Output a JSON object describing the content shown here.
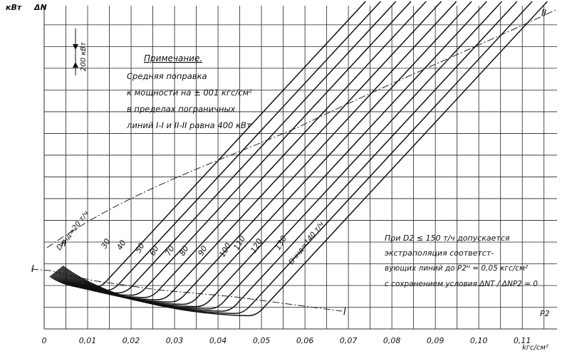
{
  "chart_data": {
    "type": "line",
    "xlabel": "P2",
    "x_unit": "kгс/см²",
    "ylabel": "ΔN",
    "y_unit": "кВт",
    "scale_note": "200 кВт",
    "x_ticks": [
      "0",
      "0,01",
      "0,02",
      "0,03",
      "0,04",
      "0,05",
      "0,06",
      "0,07",
      "0,08",
      "0,09",
      "0,10",
      "0,11"
    ],
    "xlim": [
      0,
      0.118
    ],
    "y_grid_step_kw": 100,
    "note_title": "Примечание.",
    "note_lines": [
      "Средняя поправка",
      "к мощности на ± 001 кгс/см²",
      "в пределах пограничных",
      "линий I-I и II-II равна 400 кВт"
    ],
    "side_note_lines": [
      "При D2 ≤ 150 т/ч допускается",
      "экстраполяция соответст-",
      "вующих линий до P2ᴴ = 0,05 кгс/см²",
      "с сохранением условия ΔNT / ΔNP2 = 0"
    ],
    "boundary_labels": [
      "I",
      "I",
      "II",
      "II"
    ],
    "series_labels": [
      "Dчнд=20 т/ч",
      "30",
      "40",
      "50",
      "60",
      "70",
      "80",
      "90",
      "100",
      "110",
      "120",
      "130",
      "Dчнд=140 т/ч"
    ],
    "series": [
      {
        "name": "Dчнд=20 т/ч",
        "min_x": 0.011
      },
      {
        "name": "30",
        "min_x": 0.014
      },
      {
        "name": "40",
        "min_x": 0.017
      },
      {
        "name": "50",
        "min_x": 0.02
      },
      {
        "name": "60",
        "min_x": 0.023
      },
      {
        "name": "70",
        "min_x": 0.026
      },
      {
        "name": "80",
        "min_x": 0.029
      },
      {
        "name": "90",
        "min_x": 0.032
      },
      {
        "name": "100",
        "min_x": 0.035
      },
      {
        "name": "110",
        "min_x": 0.038
      },
      {
        "name": "120",
        "min_x": 0.041
      },
      {
        "name": "130",
        "min_x": 0.044
      },
      {
        "name": "Dчнд=140 т/ч",
        "min_x": 0.047
      }
    ]
  }
}
